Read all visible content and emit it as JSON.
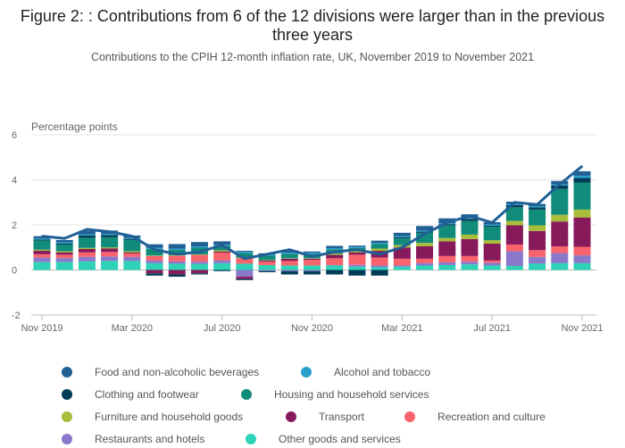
{
  "title": "Figure 2: : Contributions from 6 of the 12 divisions were larger than in the previous three years",
  "subtitle": "Contributions to the CPIH 12-month inflation rate, UK, November 2019 to November 2021",
  "chart_data": {
    "type": "bar",
    "stacked": true,
    "ylabel": "Percentage points",
    "ylim": [
      -2,
      6
    ],
    "yticks": [
      -2,
      0,
      2,
      4,
      6
    ],
    "xtick_labels": [
      "Nov 2019",
      "Mar 2020",
      "Jul 2020",
      "Nov 2020",
      "Mar 2021",
      "Jul 2021",
      "Nov 2021"
    ],
    "xtick_index": [
      0,
      4,
      8,
      12,
      16,
      20,
      24
    ],
    "categories": [
      "Nov 2019",
      "Dec 2019",
      "Jan 2020",
      "Feb 2020",
      "Mar 2020",
      "Apr 2020",
      "May 2020",
      "Jun 2020",
      "Jul 2020",
      "Aug 2020",
      "Sep 2020",
      "Oct 2020",
      "Nov 2020",
      "Dec 2020",
      "Jan 2021",
      "Feb 2021",
      "Mar 2021",
      "Apr 2021",
      "May 2021",
      "Jun 2021",
      "Jul 2021",
      "Aug 2021",
      "Sep 2021",
      "Oct 2021",
      "Nov 2021"
    ],
    "legend_position": "bottom",
    "series": [
      {
        "name": "Other goods and services",
        "color": "#2ed3b7",
        "values": [
          0.35,
          0.35,
          0.38,
          0.4,
          0.4,
          0.3,
          0.28,
          0.27,
          0.3,
          0.28,
          0.22,
          0.2,
          0.2,
          0.2,
          0.15,
          0.12,
          0.15,
          0.2,
          0.22,
          0.25,
          0.2,
          0.18,
          0.28,
          0.3,
          0.3
        ]
      },
      {
        "name": "Restaurants and hotels",
        "color": "#8a79cb",
        "values": [
          0.2,
          0.18,
          0.2,
          0.2,
          0.18,
          0.12,
          0.1,
          0.1,
          0.12,
          -0.3,
          -0.05,
          -0.05,
          -0.05,
          0.02,
          0.08,
          0.08,
          0.05,
          0.1,
          0.12,
          0.12,
          0.12,
          0.65,
          0.3,
          0.45,
          0.35
        ]
      },
      {
        "name": "Recreation and culture",
        "color": "#f9636b",
        "values": [
          0.15,
          0.15,
          0.2,
          0.2,
          0.15,
          0.2,
          0.25,
          0.3,
          0.35,
          0.25,
          0.15,
          0.2,
          0.25,
          0.3,
          0.45,
          0.35,
          0.3,
          0.2,
          0.28,
          0.25,
          0.1,
          0.3,
          0.3,
          0.3,
          0.38
        ]
      },
      {
        "name": "Transport",
        "color": "#871a5b",
        "values": [
          0.15,
          0.1,
          0.15,
          0.15,
          0.05,
          -0.15,
          -0.2,
          -0.15,
          0.05,
          -0.1,
          0.05,
          0.1,
          0.05,
          0.15,
          0.1,
          0.3,
          0.5,
          0.55,
          0.65,
          0.75,
          0.75,
          0.85,
          0.85,
          1.1,
          1.3
        ]
      },
      {
        "name": "Furniture and household goods",
        "color": "#a8bd3a",
        "values": [
          0.05,
          0.05,
          0.05,
          0.05,
          0.05,
          0.02,
          0.02,
          0.02,
          0.05,
          0.02,
          0.02,
          0.02,
          0.02,
          0.05,
          0.05,
          0.1,
          0.1,
          0.15,
          0.15,
          0.2,
          0.15,
          0.2,
          0.25,
          0.3,
          0.35
        ]
      },
      {
        "name": "Housing and household services",
        "color": "#118c7b",
        "values": [
          0.4,
          0.3,
          0.45,
          0.45,
          0.5,
          0.3,
          0.25,
          0.3,
          0.2,
          0.2,
          0.2,
          0.2,
          0.2,
          0.2,
          0.15,
          0.2,
          0.3,
          0.45,
          0.55,
          0.6,
          0.6,
          0.6,
          0.7,
          1.15,
          1.2
        ]
      },
      {
        "name": "Clothing and footwear",
        "color": "#003c57",
        "values": [
          0.05,
          0.05,
          0.1,
          0.1,
          0.05,
          -0.1,
          -0.1,
          -0.05,
          -0.05,
          -0.05,
          -0.05,
          -0.15,
          -0.15,
          -0.2,
          -0.25,
          -0.25,
          0.05,
          0.05,
          0.05,
          0.1,
          0.05,
          0.1,
          0.1,
          0.15,
          0.2
        ]
      },
      {
        "name": "Alcohol and tobacco",
        "color": "#27a0cc",
        "values": [
          0.05,
          0.05,
          0.05,
          0.05,
          0.05,
          0.05,
          0.05,
          0.05,
          0.05,
          0.05,
          0.05,
          0.05,
          0.05,
          0.05,
          0.05,
          0.05,
          0.05,
          0.05,
          0.05,
          0.05,
          0.05,
          0.05,
          0.05,
          0.05,
          0.1
        ]
      },
      {
        "name": "Food and non-alcoholic beverages",
        "color": "#206095",
        "values": [
          0.1,
          0.1,
          0.15,
          0.15,
          0.1,
          0.15,
          0.2,
          0.2,
          0.15,
          0.05,
          0.05,
          0.1,
          0.05,
          0.1,
          0.05,
          0.1,
          0.15,
          0.2,
          0.22,
          0.15,
          0.1,
          0.1,
          0.1,
          0.15,
          0.2
        ]
      }
    ],
    "line": {
      "name": "CPIH 12-month inflation rate",
      "color": "#206095",
      "values": [
        1.5,
        1.4,
        1.8,
        1.7,
        1.5,
        0.9,
        0.7,
        0.8,
        1.1,
        0.5,
        0.7,
        0.9,
        0.6,
        0.8,
        0.9,
        0.7,
        1.0,
        1.6,
        2.1,
        2.4,
        2.1,
        3.0,
        2.9,
        3.8,
        4.6
      ]
    }
  },
  "legend_items": [
    {
      "label": "Food and non-alcoholic beverages",
      "color": "#206095"
    },
    {
      "label": "Alcohol and tobacco",
      "color": "#27a0cc"
    },
    {
      "label": "Clothing and footwear",
      "color": "#003c57"
    },
    {
      "label": "Housing and household services",
      "color": "#118c7b"
    },
    {
      "label": "Furniture and household goods",
      "color": "#a8bd3a"
    },
    {
      "label": "Transport",
      "color": "#871a5b"
    },
    {
      "label": "Recreation and culture",
      "color": "#f9636b"
    },
    {
      "label": "Restaurants and hotels",
      "color": "#8a79cb"
    },
    {
      "label": "Other goods and services",
      "color": "#2ed3b7"
    }
  ]
}
